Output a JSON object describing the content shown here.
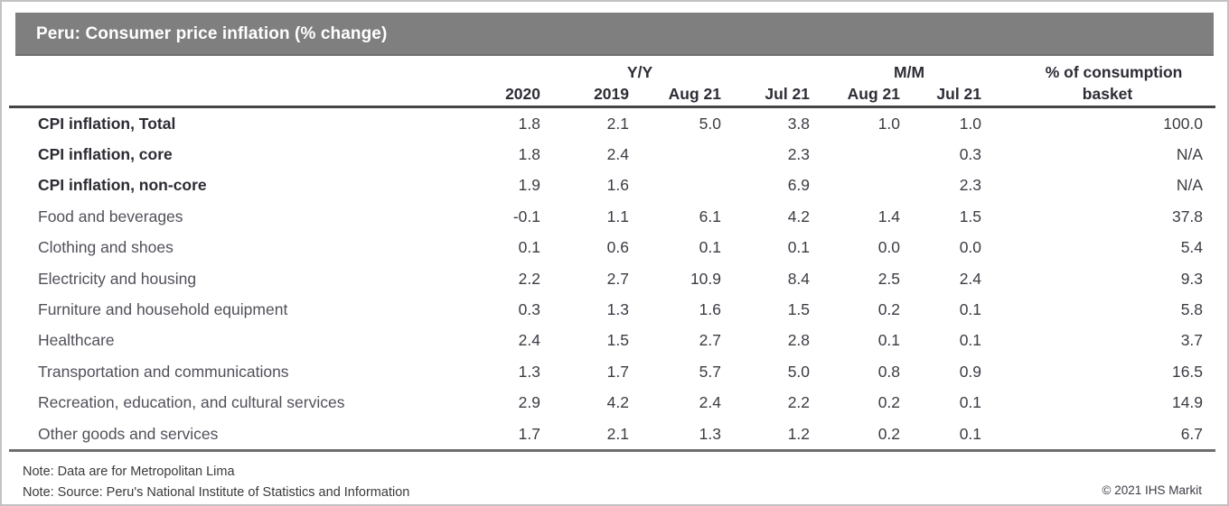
{
  "title": "Peru: Consumer price inflation (% change)",
  "chart_data": {
    "type": "table",
    "title": "Peru: Consumer price inflation (% change)",
    "column_groups": [
      {
        "label": "Y/Y",
        "span": 4
      },
      {
        "label": "M/M",
        "span": 2
      },
      {
        "label": "% of consumption",
        "span": 1
      }
    ],
    "columns": [
      "2020",
      "2019",
      "Aug 21",
      "Jul 21",
      "Aug 21",
      "Jul 21",
      "basket"
    ],
    "rows": [
      {
        "label": "CPI inflation, Total",
        "bold": true,
        "values": [
          "1.8",
          "2.1",
          "5.0",
          "3.8",
          "1.0",
          "1.0",
          "100.0"
        ]
      },
      {
        "label": "CPI inflation, core",
        "bold": true,
        "values": [
          "1.8",
          "2.4",
          "",
          "2.3",
          "",
          "0.3",
          "N/A"
        ]
      },
      {
        "label": "CPI inflation, non-core",
        "bold": true,
        "values": [
          "1.9",
          "1.6",
          "",
          "6.9",
          "",
          "2.3",
          "N/A"
        ]
      },
      {
        "label": "Food and beverages",
        "bold": false,
        "values": [
          "-0.1",
          "1.1",
          "6.1",
          "4.2",
          "1.4",
          "1.5",
          "37.8"
        ]
      },
      {
        "label": "Clothing and shoes",
        "bold": false,
        "values": [
          "0.1",
          "0.6",
          "0.1",
          "0.1",
          "0.0",
          "0.0",
          "5.4"
        ]
      },
      {
        "label": "Electricity and housing",
        "bold": false,
        "values": [
          "2.2",
          "2.7",
          "10.9",
          "8.4",
          "2.5",
          "2.4",
          "9.3"
        ]
      },
      {
        "label": "Furniture and household equipment",
        "bold": false,
        "values": [
          "0.3",
          "1.3",
          "1.6",
          "1.5",
          "0.2",
          "0.1",
          "5.8"
        ]
      },
      {
        "label": "Healthcare",
        "bold": false,
        "values": [
          "2.4",
          "1.5",
          "2.7",
          "2.8",
          "0.1",
          "0.1",
          "3.7"
        ]
      },
      {
        "label": "Transportation and communications",
        "bold": false,
        "values": [
          "1.3",
          "1.7",
          "5.7",
          "5.0",
          "0.8",
          "0.9",
          "16.5"
        ]
      },
      {
        "label": "Recreation, education, and cultural services",
        "bold": false,
        "values": [
          "2.9",
          "4.2",
          "2.4",
          "2.2",
          "0.2",
          "0.1",
          "14.9"
        ]
      },
      {
        "label": "Other goods and services",
        "bold": false,
        "values": [
          "1.7",
          "2.1",
          "1.3",
          "1.2",
          "0.2",
          "0.1",
          "6.7"
        ]
      }
    ]
  },
  "notes": [
    "Note: Data are for Metropolitan Lima",
    "Note: Source: Peru's National Institute of Statistics and Information"
  ],
  "copyright": "© 2021 IHS Markit",
  "colors": {
    "title_bar": "#7f7f7f",
    "title_text": "#ffffff",
    "header_rule": "#454545",
    "bottom_rule": "#6e6e6e",
    "bold_text": "#2b2b33",
    "regular_text": "#50505a"
  }
}
